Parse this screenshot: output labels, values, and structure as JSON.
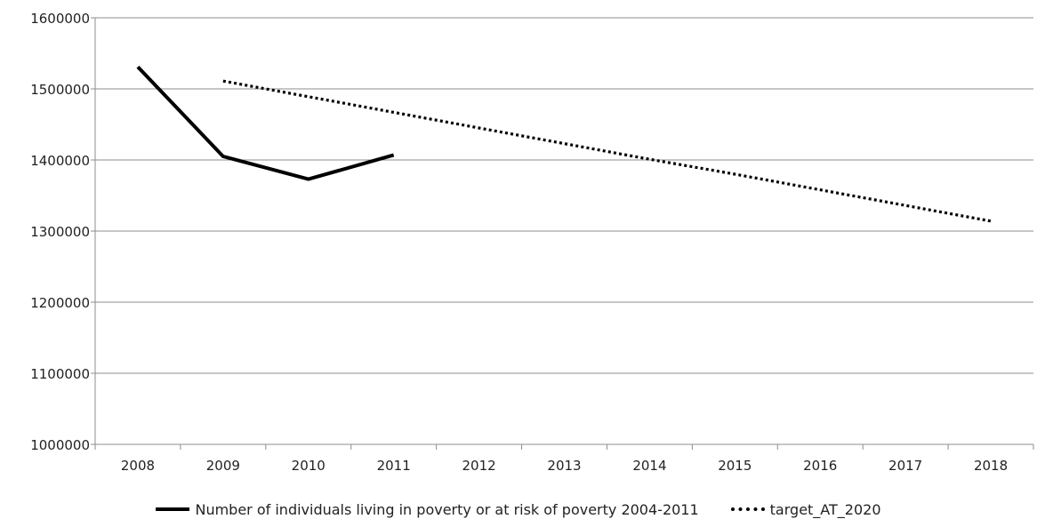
{
  "chart_data": {
    "type": "line",
    "title": "",
    "xlabel": "",
    "ylabel": "",
    "x": [
      "2008",
      "2009",
      "2010",
      "2011",
      "2012",
      "2013",
      "2014",
      "2015",
      "2016",
      "2017",
      "2018"
    ],
    "ylim": [
      1000000,
      1600000
    ],
    "yticks": [
      "1000000",
      "1100000",
      "1200000",
      "1300000",
      "1400000",
      "1500000",
      "1600000"
    ],
    "grid": true,
    "legend_position": "bottom",
    "series": [
      {
        "name": "Number of individuals living in poverty or at risk of poverty 2004-2011",
        "style": "solid",
        "color": "#000000",
        "values": [
          1531000,
          1405000,
          1373000,
          1407000,
          null,
          null,
          null,
          null,
          null,
          null,
          null
        ]
      },
      {
        "name": "target_AT_2020",
        "style": "dotted",
        "color": "#000000",
        "values": [
          null,
          1511000,
          1489000,
          1467000,
          1445000,
          1423000,
          1401000,
          1380000,
          1358000,
          1336000,
          1314000
        ]
      }
    ]
  }
}
